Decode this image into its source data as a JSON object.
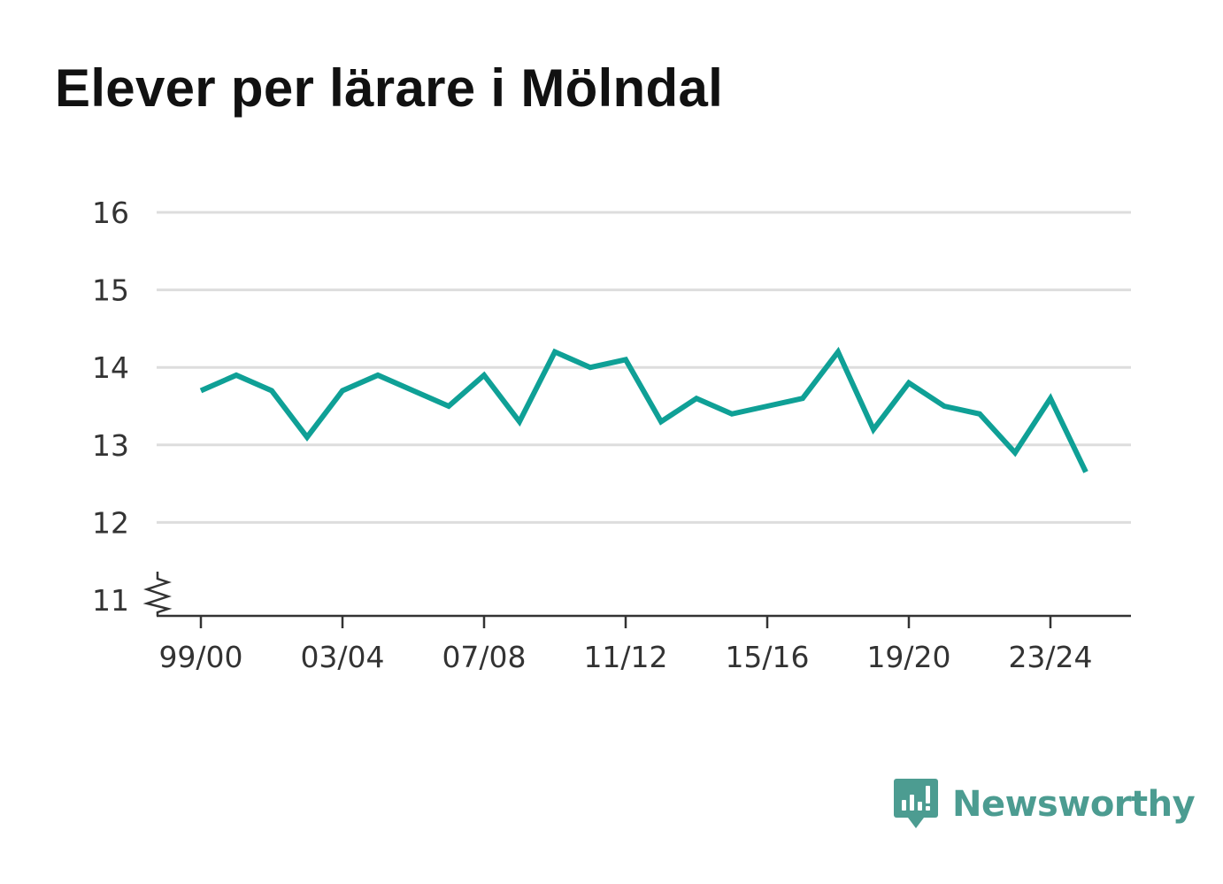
{
  "title": "Elever per lärare i Mölndal",
  "brand": {
    "name": "Newsworthy",
    "icon": "newsworthy-logo-icon",
    "color": "#4c9c91"
  },
  "colors": {
    "line": "#0fa096",
    "grid": "#dddddd",
    "axis": "#333333",
    "text": "#333333"
  },
  "chart_data": {
    "type": "line",
    "title": "Elever per lärare i Mölndal",
    "xlabel": "",
    "ylabel": "",
    "ylim": [
      11,
      16
    ],
    "axis_break": true,
    "y_ticks": [
      "16",
      "15",
      "14",
      "13",
      "12",
      "11"
    ],
    "x_ticks": [
      "99/00",
      "03/04",
      "07/08",
      "11/12",
      "15/16",
      "19/20",
      "23/24"
    ],
    "grid": true,
    "legend": "none",
    "categories": [
      "99/00",
      "00/01",
      "01/02",
      "02/03",
      "03/04",
      "04/05",
      "05/06",
      "06/07",
      "07/08",
      "08/09",
      "09/10",
      "10/11",
      "11/12",
      "12/13",
      "13/14",
      "14/15",
      "15/16",
      "16/17",
      "17/18",
      "18/19",
      "19/20",
      "20/21",
      "21/22",
      "22/23",
      "23/24",
      "24/25"
    ],
    "series": [
      {
        "values": [
          13.7,
          13.9,
          13.7,
          13.1,
          13.7,
          13.9,
          13.7,
          13.5,
          13.9,
          13.3,
          14.2,
          14.0,
          14.1,
          13.3,
          13.6,
          13.4,
          13.5,
          13.6,
          14.2,
          13.2,
          13.8,
          13.5,
          13.4,
          12.9,
          13.6,
          12.65
        ]
      }
    ]
  }
}
